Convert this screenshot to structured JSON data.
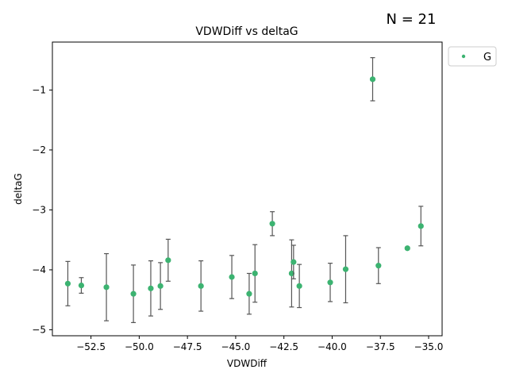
{
  "chart_data": {
    "type": "scatter",
    "title": "VDWDiff vs deltaG",
    "annotation": "N = 21",
    "xlabel": "VDWDiff",
    "ylabel": "deltaG",
    "xlim": [
      -54.5,
      -34.3
    ],
    "ylim": [
      -5.1,
      -0.2
    ],
    "xticks": [
      -52.5,
      -50.0,
      -47.5,
      -45.0,
      -42.5,
      -40.0,
      -37.5,
      -35.0
    ],
    "xtick_labels": [
      "−52.5",
      "−50.0",
      "−47.5",
      "−45.0",
      "−42.5",
      "−40.0",
      "−37.5",
      "−35.0"
    ],
    "yticks": [
      -5,
      -4,
      -3,
      -2,
      -1
    ],
    "ytick_labels": [
      "−5",
      "−4",
      "−3",
      "−2",
      "−1"
    ],
    "legend": {
      "placement": "outside-top-right",
      "entries": [
        "G"
      ]
    },
    "point_color": "#3cb371",
    "errorbar_color": "#555555",
    "series": [
      {
        "name": "G",
        "points": [
          {
            "x": -53.7,
            "y": -4.23,
            "err": 0.37
          },
          {
            "x": -53.0,
            "y": -4.26,
            "err": 0.13
          },
          {
            "x": -51.7,
            "y": -4.29,
            "err": 0.56
          },
          {
            "x": -50.3,
            "y": -4.4,
            "err": 0.48
          },
          {
            "x": -49.4,
            "y": -4.31,
            "err": 0.46
          },
          {
            "x": -48.9,
            "y": -4.27,
            "err": 0.39
          },
          {
            "x": -48.5,
            "y": -3.84,
            "err": 0.35
          },
          {
            "x": -46.8,
            "y": -4.27,
            "err": 0.42
          },
          {
            "x": -45.2,
            "y": -4.12,
            "err": 0.36
          },
          {
            "x": -44.3,
            "y": -4.4,
            "err": 0.34
          },
          {
            "x": -44.0,
            "y": -4.06,
            "err": 0.48
          },
          {
            "x": -43.1,
            "y": -3.23,
            "err": 0.2
          },
          {
            "x": -42.1,
            "y": -4.06,
            "err": 0.56
          },
          {
            "x": -42.0,
            "y": -3.87,
            "err": 0.28
          },
          {
            "x": -41.7,
            "y": -4.27,
            "err": 0.36
          },
          {
            "x": -40.1,
            "y": -4.21,
            "err": 0.32
          },
          {
            "x": -39.3,
            "y": -3.99,
            "err": 0.56
          },
          {
            "x": -37.9,
            "y": -0.82,
            "err": 0.36
          },
          {
            "x": -37.6,
            "y": -3.93,
            "err": 0.3
          },
          {
            "x": -36.1,
            "y": -3.64,
            "err": 0.02
          },
          {
            "x": -35.4,
            "y": -3.27,
            "err": 0.33
          }
        ]
      }
    ]
  }
}
